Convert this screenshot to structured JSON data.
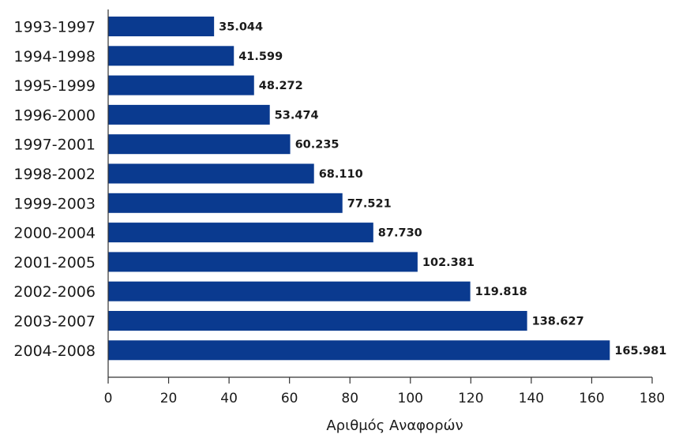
{
  "chart_data": {
    "type": "bar",
    "orientation": "horizontal",
    "categories": [
      "1993-1997",
      "1994-1998",
      "1995-1999",
      "1996-2000",
      "1997-2001",
      "1998-2002",
      "1999-2003",
      "2000-2004",
      "2001-2005",
      "2002-2006",
      "2003-2007",
      "2004-2008"
    ],
    "values": [
      35.044,
      41.599,
      48.272,
      53.474,
      60.235,
      68.11,
      77.521,
      87.73,
      102.381,
      119.818,
      138.627,
      165.981
    ],
    "value_labels": [
      "35.044",
      "41.599",
      "48.272",
      "53.474",
      "60.235",
      "68.110",
      "77.521",
      "87.730",
      "102.381",
      "119.818",
      "138.627",
      "165.981"
    ],
    "title": "",
    "xlabel": "Αριθμός Αναφορών",
    "ylabel": "",
    "xlim": [
      0,
      180
    ],
    "xticks": [
      0,
      20,
      40,
      60,
      80,
      100,
      120,
      140,
      160,
      180
    ],
    "grid": false,
    "legend": "none",
    "colors": {
      "bar": "#0a3a8f",
      "axis": "#333333",
      "text": "#1a1a1a"
    }
  }
}
